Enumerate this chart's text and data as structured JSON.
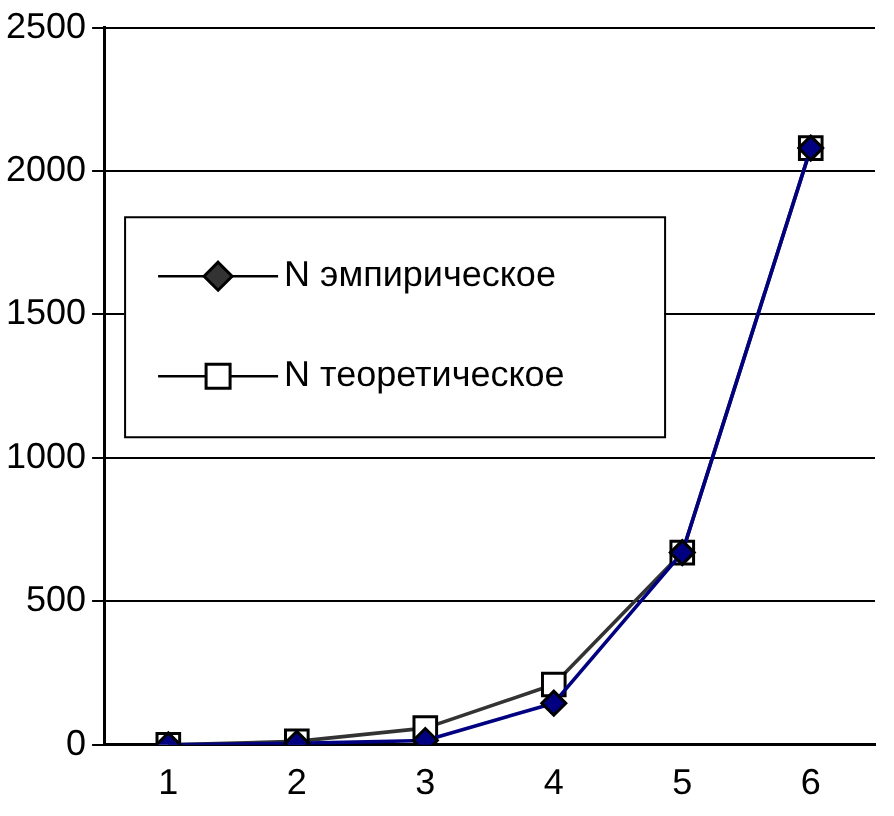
{
  "chart_data": {
    "type": "line",
    "categories": [
      "1",
      "2",
      "3",
      "4",
      "5",
      "6"
    ],
    "series": [
      {
        "name": "N эмпирическое",
        "color": "#000080",
        "marker": "diamond",
        "values": [
          0,
          5,
          15,
          145,
          670,
          2080
        ]
      },
      {
        "name": "N теоретическое",
        "color": "#333333",
        "marker": "square",
        "values": [
          0,
          12,
          58,
          210,
          670,
          2080
        ]
      }
    ],
    "ylim": [
      0,
      2500
    ],
    "yticks": [
      0,
      500,
      1000,
      1500,
      2000,
      2500
    ],
    "grid": "y",
    "legend": "left"
  }
}
